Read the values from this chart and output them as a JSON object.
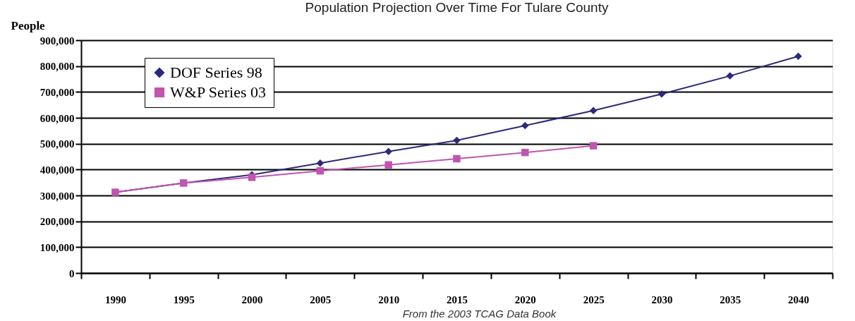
{
  "chart_data": {
    "type": "line",
    "title": "Population Projection Over Time For Tulare County",
    "ylabel": "People",
    "categories": [
      "1990",
      "1995",
      "2000",
      "2005",
      "2010",
      "2015",
      "2020",
      "2025",
      "2030",
      "2035",
      "2040"
    ],
    "series": [
      {
        "name": "DOF Series 98",
        "color": "#2b2a7a",
        "marker": "diamond",
        "values": [
          312000,
          348000,
          380000,
          425000,
          470000,
          513000,
          570000,
          628000,
          692000,
          762000,
          838000
        ]
      },
      {
        "name": "W&P Series 03",
        "color": "#c055b0",
        "marker": "square",
        "values": [
          312000,
          348000,
          370000,
          395000,
          418000,
          442000,
          466000,
          492000,
          null,
          null,
          null
        ]
      }
    ],
    "ylim": [
      0,
      900000
    ],
    "yticks": [
      0,
      {
        "value": 100000,
        "label": "100,000"
      },
      {
        "value": 200000,
        "label": "200,000"
      },
      {
        "value": 300000,
        "label": "300,000"
      },
      {
        "value": 400000,
        "label": "400,000"
      },
      {
        "value": 500000,
        "label": "500,000"
      },
      {
        "value": 600000,
        "label": "600,000"
      },
      {
        "value": 700000,
        "label": "700,000"
      },
      {
        "value": 800000,
        "label": "800,000"
      },
      {
        "value": 900000,
        "label": "900,000"
      }
    ],
    "grid": "y",
    "legend": "top left",
    "line_style": "solid",
    "annotations": [
      "From the 2003 TCAG Data Book"
    ]
  }
}
